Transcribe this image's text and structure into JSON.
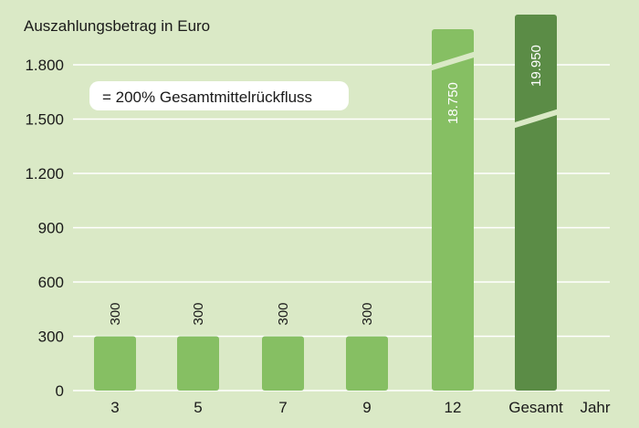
{
  "chart_data": {
    "type": "bar",
    "ylabel": "Auszahlungsbetrag in Euro",
    "xlabel": "Jahr",
    "annotation": "= 200% Gesamtmittelrückfluss",
    "categories": [
      "3",
      "5",
      "7",
      "9",
      "12",
      "Gesamt"
    ],
    "values": [
      300,
      300,
      300,
      300,
      18750,
      19950
    ],
    "value_labels": [
      "300",
      "300",
      "300",
      "300",
      "18.750",
      "19.950"
    ],
    "broken_bars": [
      false,
      false,
      false,
      false,
      true,
      true
    ],
    "yticks": [
      0,
      300,
      600,
      900,
      1200,
      1500,
      1800
    ],
    "ytick_labels": [
      "0",
      "300",
      "600",
      "900",
      "1.200",
      "1.500",
      "1.800"
    ],
    "ylim": [
      0,
      1800
    ],
    "grid": true,
    "legend": "none",
    "colors": {
      "background": "#dae9c6",
      "bar": "#86bf63",
      "bar_total": "#5b8c46",
      "grid": "#ffffff",
      "text": "#1a1a1a",
      "annotation_box": "#ffffff"
    }
  }
}
